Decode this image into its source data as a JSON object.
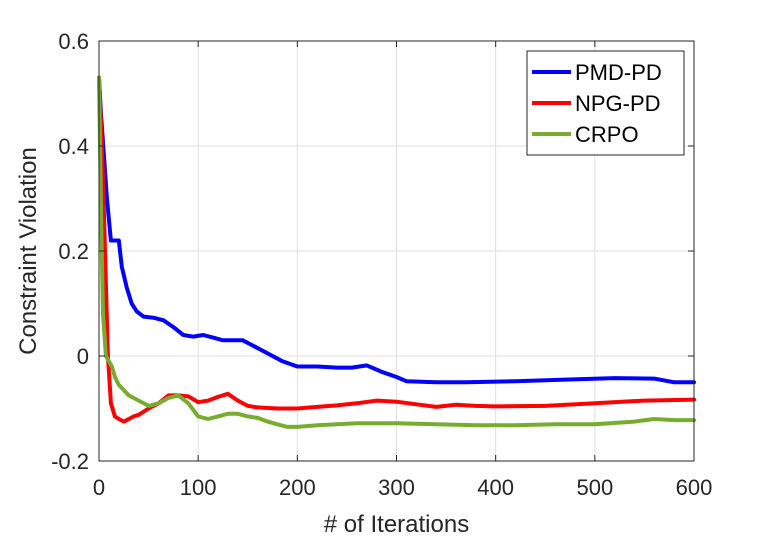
{
  "chart_data": {
    "type": "line",
    "xlabel": "# of Iterations",
    "ylabel": "Constraint Violation",
    "xlim": [
      0,
      600
    ],
    "ylim": [
      -0.2,
      0.6
    ],
    "xticks": [
      0,
      100,
      200,
      300,
      400,
      500,
      600
    ],
    "yticks": [
      -0.2,
      0,
      0.2,
      0.4,
      0.6
    ],
    "xtick_labels": [
      "0",
      "100",
      "200",
      "300",
      "400",
      "500",
      "600"
    ],
    "ytick_labels": [
      "-0.2",
      "0",
      "0.2",
      "0.4",
      "0.6"
    ],
    "grid": true,
    "legend_position": "top-right",
    "series": [
      {
        "name": "PMD-PD",
        "color": "#0000ff",
        "x": [
          0,
          2,
          5,
          8,
          12,
          16,
          20,
          23,
          28,
          33,
          38,
          45,
          55,
          65,
          75,
          85,
          95,
          105,
          115,
          125,
          135,
          145,
          155,
          170,
          185,
          200,
          220,
          240,
          255,
          270,
          285,
          300,
          310,
          340,
          370,
          420,
          470,
          520,
          560,
          580,
          600
        ],
        "y": [
          0.53,
          0.46,
          0.38,
          0.3,
          0.22,
          0.22,
          0.22,
          0.17,
          0.13,
          0.1,
          0.085,
          0.075,
          0.073,
          0.068,
          0.055,
          0.04,
          0.037,
          0.04,
          0.035,
          0.03,
          0.03,
          0.03,
          0.02,
          0.005,
          -0.01,
          -0.02,
          -0.02,
          -0.022,
          -0.022,
          -0.018,
          -0.03,
          -0.04,
          -0.048,
          -0.05,
          -0.05,
          -0.048,
          -0.045,
          -0.042,
          -0.043,
          -0.05,
          -0.05
        ]
      },
      {
        "name": "NPG-PD",
        "color": "#ff0000",
        "x": [
          0,
          3,
          6,
          9,
          12,
          16,
          20,
          25,
          30,
          35,
          40,
          50,
          60,
          70,
          80,
          90,
          100,
          110,
          120,
          130,
          140,
          150,
          160,
          180,
          200,
          220,
          240,
          260,
          280,
          300,
          320,
          340,
          360,
          380,
          400,
          450,
          500,
          550,
          600
        ],
        "y": [
          0.53,
          0.4,
          0.2,
          0.0,
          -0.09,
          -0.115,
          -0.12,
          -0.125,
          -0.12,
          -0.115,
          -0.112,
          -0.1,
          -0.09,
          -0.075,
          -0.075,
          -0.077,
          -0.088,
          -0.085,
          -0.078,
          -0.072,
          -0.085,
          -0.095,
          -0.098,
          -0.1,
          -0.1,
          -0.097,
          -0.094,
          -0.09,
          -0.085,
          -0.087,
          -0.092,
          -0.097,
          -0.093,
          -0.095,
          -0.096,
          -0.095,
          -0.09,
          -0.085,
          -0.083
        ]
      },
      {
        "name": "CRPO",
        "color": "#77ac30",
        "x": [
          0,
          2,
          4,
          7,
          10,
          13,
          16,
          20,
          25,
          30,
          40,
          50,
          60,
          70,
          80,
          90,
          100,
          110,
          120,
          130,
          140,
          150,
          160,
          170,
          180,
          190,
          200,
          220,
          240,
          260,
          280,
          300,
          340,
          380,
          420,
          460,
          500,
          540,
          560,
          580,
          600
        ],
        "y": [
          0.53,
          0.28,
          0.08,
          0.0,
          -0.01,
          -0.02,
          -0.04,
          -0.055,
          -0.065,
          -0.075,
          -0.085,
          -0.095,
          -0.09,
          -0.08,
          -0.075,
          -0.09,
          -0.115,
          -0.12,
          -0.115,
          -0.11,
          -0.11,
          -0.115,
          -0.118,
          -0.125,
          -0.13,
          -0.135,
          -0.135,
          -0.132,
          -0.13,
          -0.128,
          -0.128,
          -0.128,
          -0.13,
          -0.132,
          -0.132,
          -0.13,
          -0.13,
          -0.125,
          -0.12,
          -0.122,
          -0.122
        ]
      }
    ]
  }
}
